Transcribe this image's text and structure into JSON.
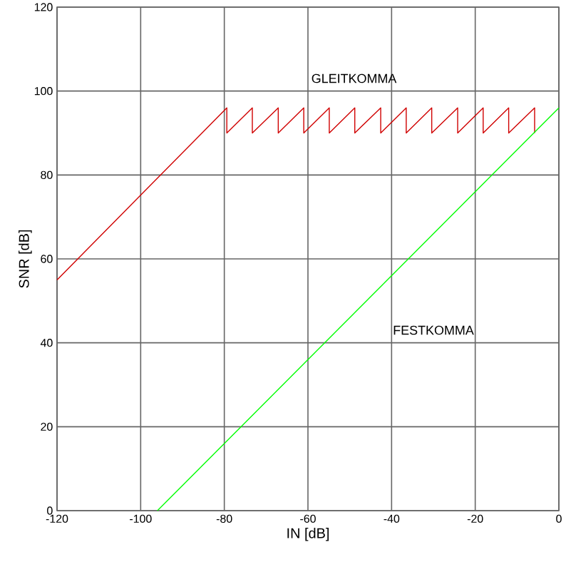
{
  "chart_data": {
    "type": "line",
    "xlabel": "IN [dB]",
    "ylabel": "SNR [dB]",
    "xlim": [
      -120,
      0
    ],
    "ylim": [
      0,
      120
    ],
    "xticks": [
      -120,
      -100,
      -80,
      -60,
      -40,
      -20,
      0
    ],
    "yticks": [
      0,
      20,
      40,
      60,
      80,
      100,
      120
    ],
    "grid": true,
    "series": [
      {
        "name": "GLEITKOMMA",
        "color": "#d00000",
        "x": [
          -120,
          -79.4,
          -79.4,
          -73.3,
          -73.3,
          -67.1,
          -67.1,
          -61.0,
          -61.0,
          -54.9,
          -54.9,
          -48.8,
          -48.8,
          -42.6,
          -42.6,
          -36.5,
          -36.5,
          -30.4,
          -30.4,
          -24.2,
          -24.2,
          -18.1,
          -18.1,
          -12.0,
          -12.0,
          -5.8,
          -5.8
        ],
        "values": [
          55,
          96,
          90,
          96,
          90,
          96,
          90,
          96,
          90,
          96,
          90,
          96,
          90,
          96,
          90,
          96,
          90,
          96,
          90,
          96,
          90,
          96,
          90,
          96,
          90,
          96,
          90
        ]
      },
      {
        "name": "FESTKOMMA",
        "color": "#00ff00",
        "x": [
          -96,
          0
        ],
        "values": [
          0,
          96
        ]
      }
    ]
  }
}
